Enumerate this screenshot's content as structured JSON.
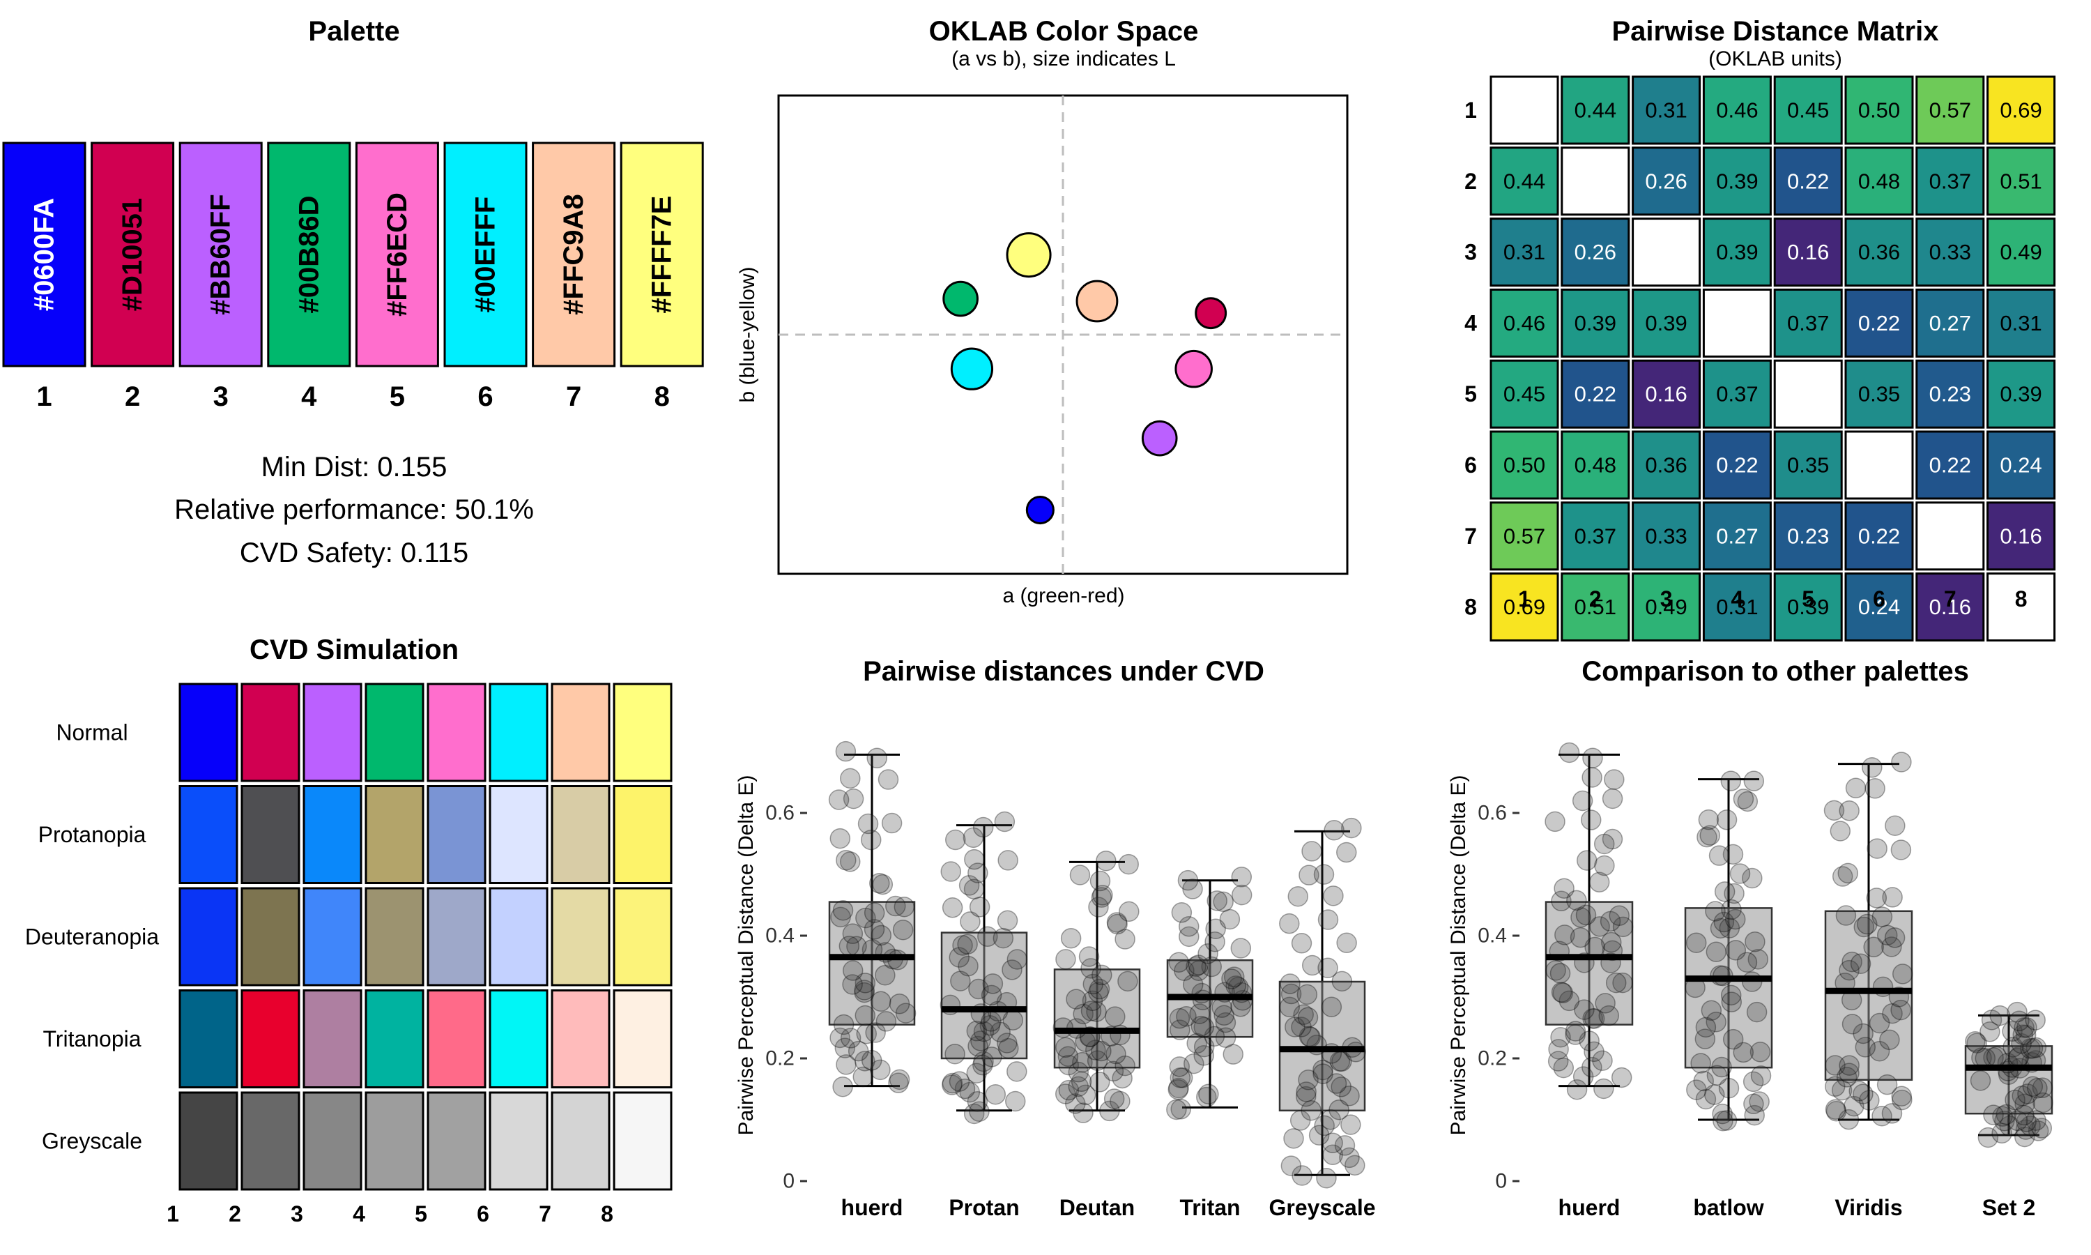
{
  "palette": {
    "title": "Palette",
    "colors": [
      "#0600FA",
      "#D10051",
      "#BB60FF",
      "#00B86D",
      "#FF6ECD",
      "#00EFFF",
      "#FFC9A8",
      "#FFFF7E"
    ],
    "hex_labels": [
      "#0600FA",
      "#D10051",
      "#BB60FF",
      "#00B86D",
      "#FF6ECD",
      "#00EFFF",
      "#FFC9A8",
      "#FFFF7E"
    ],
    "hex_text_colors": [
      "#FFFFFF",
      "#000000",
      "#000000",
      "#000000",
      "#000000",
      "#000000",
      "#000000",
      "#000000"
    ],
    "indices": [
      "1",
      "2",
      "3",
      "4",
      "5",
      "6",
      "7",
      "8"
    ],
    "stats": [
      "Min Dist: 0.155",
      "Relative performance: 50.1%",
      "CVD Safety: 0.115"
    ]
  },
  "chart_data": [
    {
      "type": "scatter",
      "title": "OKLAB Color Space",
      "subtitle": "(a vs b), size indicates L",
      "xlabel": "a (green-red)",
      "ylabel": "b (blue-yellow)",
      "xlim": [
        -0.25,
        0.25
      ],
      "ylim": [
        -0.3,
        0.3
      ],
      "points": [
        {
          "a": -0.02,
          "b": -0.22,
          "L": 0.46,
          "color": "#0600FA"
        },
        {
          "a": 0.13,
          "b": 0.027,
          "L": 0.56,
          "color": "#D10051"
        },
        {
          "a": 0.085,
          "b": -0.13,
          "L": 0.68,
          "color": "#BB60FF"
        },
        {
          "a": -0.09,
          "b": 0.045,
          "L": 0.68,
          "color": "#00B86D"
        },
        {
          "a": 0.115,
          "b": -0.043,
          "L": 0.74,
          "color": "#FF6ECD"
        },
        {
          "a": -0.08,
          "b": -0.043,
          "L": 0.88,
          "color": "#00EFFF"
        },
        {
          "a": 0.03,
          "b": 0.042,
          "L": 0.87,
          "color": "#FFC9A8"
        },
        {
          "a": -0.03,
          "b": 0.1,
          "L": 0.96,
          "color": "#FFFF7E"
        }
      ]
    },
    {
      "type": "heatmap",
      "title": "Pairwise Distance Matrix",
      "subtitle": "(OKLAB units)",
      "labels": [
        "1",
        "2",
        "3",
        "4",
        "5",
        "6",
        "7",
        "8"
      ],
      "values": [
        [
          null,
          0.44,
          0.31,
          0.46,
          0.45,
          0.5,
          0.57,
          0.69
        ],
        [
          0.44,
          null,
          0.26,
          0.39,
          0.22,
          0.48,
          0.37,
          0.51
        ],
        [
          0.31,
          0.26,
          null,
          0.39,
          0.16,
          0.36,
          0.33,
          0.49
        ],
        [
          0.46,
          0.39,
          0.39,
          null,
          0.37,
          0.22,
          0.27,
          0.31
        ],
        [
          0.45,
          0.22,
          0.16,
          0.37,
          null,
          0.35,
          0.23,
          0.39
        ],
        [
          0.5,
          0.48,
          0.36,
          0.22,
          0.35,
          null,
          0.22,
          0.24
        ],
        [
          0.57,
          0.37,
          0.33,
          0.27,
          0.23,
          0.22,
          null,
          0.16
        ],
        [
          0.69,
          0.51,
          0.49,
          0.31,
          0.39,
          0.24,
          0.16,
          null
        ]
      ]
    },
    {
      "type": "table",
      "title": "CVD Simulation",
      "rows": [
        {
          "name": "Normal",
          "colors": [
            "#0600FA",
            "#D10051",
            "#BB60FF",
            "#00B86D",
            "#FF6ECD",
            "#00EFFF",
            "#FFC9A8",
            "#FFFF7E"
          ]
        },
        {
          "name": "Protanopia",
          "colors": [
            "#0A4EFA",
            "#4F4F52",
            "#0A88FA",
            "#B3A46A",
            "#7A94D4",
            "#DDE5FF",
            "#D8CCA6",
            "#FDF36A"
          ]
        },
        {
          "name": "Deuteranopia",
          "colors": [
            "#0A35F5",
            "#7D7450",
            "#4086FA",
            "#9C9370",
            "#9EA8C9",
            "#C3D1FF",
            "#E4DAA5",
            "#FCF37A"
          ]
        },
        {
          "name": "Tritanopia",
          "colors": [
            "#006489",
            "#E8002D",
            "#AE7FA1",
            "#00B3A0",
            "#FF6A89",
            "#00F6F6",
            "#FFBBBB",
            "#FEF0E2"
          ]
        },
        {
          "name": "Greyscale",
          "colors": [
            "#454545",
            "#686868",
            "#878787",
            "#9D9D9D",
            "#A1A1A1",
            "#D8D8D8",
            "#D4D4D4",
            "#F6F6F6"
          ]
        }
      ],
      "columns": [
        "1",
        "2",
        "3",
        "4",
        "5",
        "6",
        "7",
        "8"
      ]
    },
    {
      "type": "box",
      "title": "Pairwise distances under CVD",
      "ylabel": "Pairwise Perceptual Distance (Delta E)",
      "ylim": [
        0,
        0.7
      ],
      "yticks": [
        "0",
        "0.2",
        "0.4",
        "0.6"
      ],
      "groups": [
        {
          "name": "huerd",
          "min": 0.155,
          "q1": 0.255,
          "median": 0.365,
          "q3": 0.455,
          "max": 0.695
        },
        {
          "name": "Protan",
          "min": 0.115,
          "q1": 0.2,
          "median": 0.28,
          "q3": 0.405,
          "max": 0.58
        },
        {
          "name": "Deutan",
          "min": 0.115,
          "q1": 0.185,
          "median": 0.245,
          "q3": 0.345,
          "max": 0.52
        },
        {
          "name": "Tritan",
          "min": 0.12,
          "q1": 0.235,
          "median": 0.3,
          "q3": 0.36,
          "max": 0.49
        },
        {
          "name": "Greyscale",
          "min": 0.01,
          "q1": 0.115,
          "median": 0.215,
          "q3": 0.325,
          "max": 0.57
        }
      ]
    },
    {
      "type": "box",
      "title": "Comparison to other palettes",
      "ylabel": "Pairwise Perceptual Distance (Delta E)",
      "ylim": [
        0,
        0.7
      ],
      "yticks": [
        "0",
        "0.2",
        "0.4",
        "0.6"
      ],
      "groups": [
        {
          "name": "huerd",
          "min": 0.155,
          "q1": 0.255,
          "median": 0.365,
          "q3": 0.455,
          "max": 0.695
        },
        {
          "name": "batlow",
          "min": 0.1,
          "q1": 0.185,
          "median": 0.33,
          "q3": 0.445,
          "max": 0.655
        },
        {
          "name": "Viridis",
          "min": 0.1,
          "q1": 0.165,
          "median": 0.31,
          "q3": 0.44,
          "max": 0.68
        },
        {
          "name": "Set 2",
          "min": 0.075,
          "q1": 0.11,
          "median": 0.185,
          "q3": 0.22,
          "max": 0.27
        }
      ]
    }
  ]
}
